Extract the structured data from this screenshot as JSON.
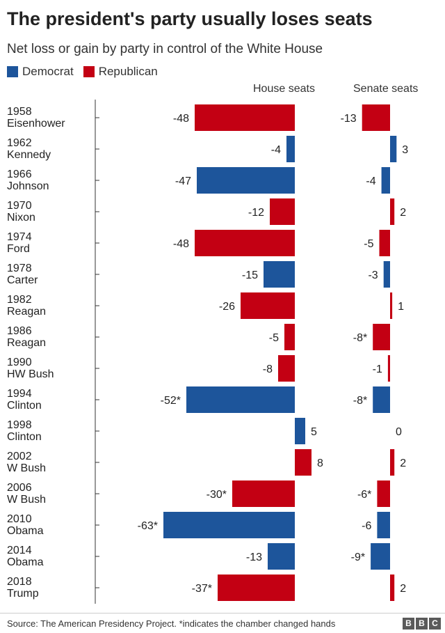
{
  "chart_data": {
    "type": "bar",
    "title": "The president's party usually loses seats",
    "subtitle": "Net loss or gain by party in control of the White House",
    "legend": [
      {
        "name": "Democrat",
        "color": "#1d559b"
      },
      {
        "name": "Republican",
        "color": "#c30013"
      }
    ],
    "column_headers": {
      "house": "House seats",
      "senate": "Senate seats"
    },
    "rows": [
      {
        "year": "1958",
        "president": "Eisenhower",
        "party": "Republican",
        "house": -48,
        "house_label": "-48",
        "senate": -13,
        "senate_label": "-13"
      },
      {
        "year": "1962",
        "president": "Kennedy",
        "party": "Democrat",
        "house": -4,
        "house_label": "-4",
        "senate": 3,
        "senate_label": "3"
      },
      {
        "year": "1966",
        "president": "Johnson",
        "party": "Democrat",
        "house": -47,
        "house_label": "-47",
        "senate": -4,
        "senate_label": "-4"
      },
      {
        "year": "1970",
        "president": "Nixon",
        "party": "Republican",
        "house": -12,
        "house_label": "-12",
        "senate": 2,
        "senate_label": "2"
      },
      {
        "year": "1974",
        "president": "Ford",
        "party": "Republican",
        "house": -48,
        "house_label": "-48",
        "senate": -5,
        "senate_label": "-5"
      },
      {
        "year": "1978",
        "president": "Carter",
        "party": "Democrat",
        "house": -15,
        "house_label": "-15",
        "senate": -3,
        "senate_label": "-3"
      },
      {
        "year": "1982",
        "president": "Reagan",
        "party": "Republican",
        "house": -26,
        "house_label": "-26",
        "senate": 1,
        "senate_label": "1"
      },
      {
        "year": "1986",
        "president": "Reagan",
        "party": "Republican",
        "house": -5,
        "house_label": "-5",
        "senate": -8,
        "senate_label": "-8*"
      },
      {
        "year": "1990",
        "president": "HW Bush",
        "party": "Republican",
        "house": -8,
        "house_label": "-8",
        "senate": -1,
        "senate_label": "-1"
      },
      {
        "year": "1994",
        "president": "Clinton",
        "party": "Democrat",
        "house": -52,
        "house_label": "-52*",
        "senate": -8,
        "senate_label": "-8*"
      },
      {
        "year": "1998",
        "president": "Clinton",
        "party": "Democrat",
        "house": 5,
        "house_label": "5",
        "senate": 0,
        "senate_label": "0"
      },
      {
        "year": "2002",
        "president": "W Bush",
        "party": "Republican",
        "house": 8,
        "house_label": "8",
        "senate": 2,
        "senate_label": "2"
      },
      {
        "year": "2006",
        "president": "W Bush",
        "party": "Republican",
        "house": -30,
        "house_label": "-30*",
        "senate": -6,
        "senate_label": "-6*"
      },
      {
        "year": "2010",
        "president": "Obama",
        "party": "Democrat",
        "house": -63,
        "house_label": "-63*",
        "senate": -6,
        "senate_label": "-6"
      },
      {
        "year": "2014",
        "president": "Obama",
        "party": "Democrat",
        "house": -13,
        "house_label": "-13",
        "senate": -9,
        "senate_label": "-9*"
      },
      {
        "year": "2018",
        "president": "Trump",
        "party": "Republican",
        "house": -37,
        "house_label": "-37*",
        "senate": 2,
        "senate_label": "2"
      }
    ]
  },
  "footer": {
    "source": "Source: The American Presidency Project. *indicates the chamber changed hands",
    "logo_letters": [
      "B",
      "B",
      "C"
    ]
  }
}
